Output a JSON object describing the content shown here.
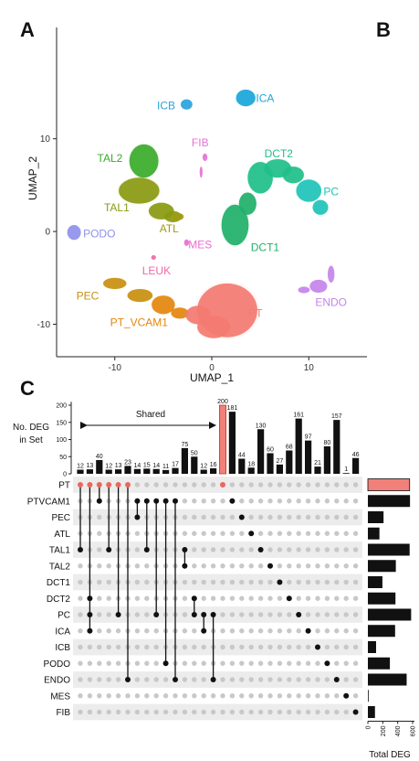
{
  "panels": {
    "a": "A",
    "b": "B",
    "c": "C"
  },
  "umap": {
    "xlabel": "UMAP_1",
    "ylabel": "UMAP_2",
    "xlim": [
      -16,
      16
    ],
    "ylim": [
      -13.5,
      22
    ],
    "xticks": [
      -10,
      0,
      10
    ],
    "yticks": [
      -10,
      0,
      10
    ],
    "clusters": [
      {
        "name": "ICB",
        "color": "#29a3dc",
        "lx": -4.7,
        "ly": 13.5,
        "blobs": [
          [
            -2.6,
            13.7,
            0.6,
            0.55
          ]
        ]
      },
      {
        "name": "ICA",
        "color": "#1aa6d9",
        "lx": 5.5,
        "ly": 14.3,
        "blobs": [
          [
            3.5,
            14.4,
            1.0,
            0.9
          ]
        ]
      },
      {
        "name": "FIB",
        "color": "#e772d7",
        "lx": -1.2,
        "ly": 9.5,
        "blobs": [
          [
            -0.7,
            8.0,
            0.25,
            0.4
          ],
          [
            -1.1,
            6.4,
            0.15,
            0.6
          ]
        ]
      },
      {
        "name": "TAL2",
        "color": "#3aab2a",
        "lx": -10.5,
        "ly": 7.8,
        "blobs": [
          [
            -7.0,
            7.6,
            1.5,
            1.8
          ]
        ]
      },
      {
        "name": "TAL1",
        "color": "#8a9a12",
        "lx": -9.8,
        "ly": 2.5,
        "blobs": [
          [
            -7.5,
            4.4,
            2.1,
            1.4
          ],
          [
            -5.2,
            2.2,
            1.3,
            0.9
          ],
          [
            -4.0,
            1.6,
            0.9,
            0.6
          ]
        ]
      },
      {
        "name": "ATL",
        "color": "#a29a16",
        "lx": -4.4,
        "ly": 0.2,
        "blobs": [
          [
            -3.5,
            1.6,
            0.6,
            0.4
          ]
        ]
      },
      {
        "name": "DCT2",
        "color": "#1fbf8a",
        "lx": 6.9,
        "ly": 8.3,
        "blobs": [
          [
            5.0,
            5.8,
            1.3,
            1.7
          ],
          [
            6.8,
            6.8,
            1.4,
            1.0
          ],
          [
            8.4,
            6.1,
            1.1,
            0.9
          ]
        ]
      },
      {
        "name": "PC",
        "color": "#1fc3b8",
        "lx": 12.3,
        "ly": 4.2,
        "blobs": [
          [
            10.0,
            4.4,
            1.3,
            1.2
          ],
          [
            11.2,
            2.6,
            0.8,
            0.8
          ]
        ]
      },
      {
        "name": "DCT1",
        "color": "#21b06a",
        "lx": 5.5,
        "ly": -1.8,
        "blobs": [
          [
            2.4,
            0.7,
            1.4,
            2.2
          ],
          [
            3.7,
            3.0,
            0.9,
            1.2
          ]
        ]
      },
      {
        "name": "PODO",
        "color": "#8f91ea",
        "lx": -11.6,
        "ly": -0.3,
        "blobs": [
          [
            -14.2,
            -0.1,
            0.7,
            0.8
          ]
        ]
      },
      {
        "name": "MES",
        "color": "#ec6bd2",
        "lx": -1.2,
        "ly": -1.5,
        "blobs": [
          [
            -2.6,
            -1.2,
            0.25,
            0.35
          ]
        ]
      },
      {
        "name": "LEUK",
        "color": "#ef68a8",
        "lx": -5.7,
        "ly": -4.3,
        "blobs": [
          [
            -6.0,
            -2.8,
            0.25,
            0.25
          ]
        ]
      },
      {
        "name": "ENDO",
        "color": "#c584ea",
        "lx": 12.3,
        "ly": -7.7,
        "blobs": [
          [
            11.0,
            -5.9,
            0.9,
            0.7
          ],
          [
            12.3,
            -4.6,
            0.35,
            0.9
          ],
          [
            9.5,
            -6.3,
            0.6,
            0.35
          ]
        ]
      },
      {
        "name": "PEC",
        "color": "#c89010",
        "lx": -12.8,
        "ly": -7.0,
        "blobs": [
          [
            -10.0,
            -5.6,
            1.2,
            0.6
          ],
          [
            -7.4,
            -6.9,
            1.3,
            0.7
          ]
        ]
      },
      {
        "name": "PT_VCAM1",
        "color": "#e4870f",
        "lx": -7.5,
        "ly": -9.9,
        "blobs": [
          [
            -5.0,
            -7.9,
            1.2,
            1.0
          ],
          [
            -3.3,
            -8.8,
            0.9,
            0.6
          ]
        ]
      },
      {
        "name": "PT",
        "color": "#f37b71",
        "lx": 4.5,
        "ly": -8.9,
        "blobs": [
          [
            1.6,
            -8.5,
            3.1,
            2.9
          ],
          [
            -1.4,
            -9.0,
            1.3,
            1.0
          ],
          [
            0.2,
            -10.3,
            1.7,
            1.2
          ]
        ]
      }
    ]
  },
  "upset": {
    "ylabel_line1": "No. DEG",
    "ylabel_line2": "in Set",
    "yticks": [
      0,
      50,
      100,
      150,
      200
    ],
    "annotation": "Shared",
    "xlabel": "Total DEG",
    "xticks": [
      0,
      200,
      400,
      600
    ],
    "xtick_labels": [
      "0",
      "200",
      "400",
      "600"
    ],
    "highlight_color": "#f08079",
    "bar_color": "#111111"
  },
  "chart_data": {
    "type": "bar",
    "title": "",
    "xlabel": "",
    "ylabel": "No. DEG in Set",
    "ylim": [
      0,
      210
    ],
    "sets": [
      "PT",
      "PTVCAM1",
      "PEC",
      "ATL",
      "TAL1",
      "TAL2",
      "DCT1",
      "DCT2",
      "PC",
      "ICA",
      "ICB",
      "PODO",
      "ENDO",
      "MES",
      "FIB"
    ],
    "set_totals": [
      560,
      565,
      210,
      155,
      560,
      375,
      195,
      370,
      580,
      365,
      110,
      295,
      520,
      5,
      95
    ],
    "intersections": [
      {
        "value": 12,
        "sets": [
          "PT",
          "TAL1"
        ]
      },
      {
        "value": 13,
        "sets": [
          "PT",
          "DCT2",
          "PC",
          "ICA"
        ]
      },
      {
        "value": 40,
        "sets": [
          "PT",
          "PTVCAM1"
        ]
      },
      {
        "value": 12,
        "sets": [
          "PT",
          "TAL1"
        ]
      },
      {
        "value": 13,
        "sets": [
          "PT",
          "PC"
        ]
      },
      {
        "value": 23,
        "sets": [
          "PT",
          "ENDO"
        ]
      },
      {
        "value": 14,
        "sets": [
          "PTVCAM1",
          "PEC"
        ]
      },
      {
        "value": 15,
        "sets": [
          "PTVCAM1",
          "TAL1"
        ]
      },
      {
        "value": 14,
        "sets": [
          "PTVCAM1",
          "PC"
        ]
      },
      {
        "value": 11,
        "sets": [
          "PTVCAM1",
          "PODO"
        ]
      },
      {
        "value": 17,
        "sets": [
          "PTVCAM1",
          "ENDO"
        ]
      },
      {
        "value": 75,
        "sets": [
          "TAL1",
          "TAL2"
        ]
      },
      {
        "value": 50,
        "sets": [
          "DCT2",
          "PC"
        ]
      },
      {
        "value": 12,
        "sets": [
          "PC",
          "ICA"
        ]
      },
      {
        "value": 16,
        "sets": [
          "PC",
          "ENDO"
        ]
      },
      {
        "value": 200,
        "sets": [
          "PT"
        ]
      },
      {
        "value": 181,
        "sets": [
          "PTVCAM1"
        ]
      },
      {
        "value": 44,
        "sets": [
          "PEC"
        ]
      },
      {
        "value": 18,
        "sets": [
          "ATL"
        ]
      },
      {
        "value": 130,
        "sets": [
          "TAL1"
        ]
      },
      {
        "value": 60,
        "sets": [
          "TAL2"
        ]
      },
      {
        "value": 27,
        "sets": [
          "DCT1"
        ]
      },
      {
        "value": 68,
        "sets": [
          "DCT2"
        ]
      },
      {
        "value": 161,
        "sets": [
          "PC"
        ]
      },
      {
        "value": 97,
        "sets": [
          "ICA"
        ]
      },
      {
        "value": 21,
        "sets": [
          "ICB"
        ]
      },
      {
        "value": 80,
        "sets": [
          "PODO"
        ]
      },
      {
        "value": 157,
        "sets": [
          "ENDO"
        ]
      },
      {
        "value": 1,
        "sets": [
          "MES"
        ]
      },
      {
        "value": 46,
        "sets": [
          "FIB"
        ]
      }
    ]
  }
}
